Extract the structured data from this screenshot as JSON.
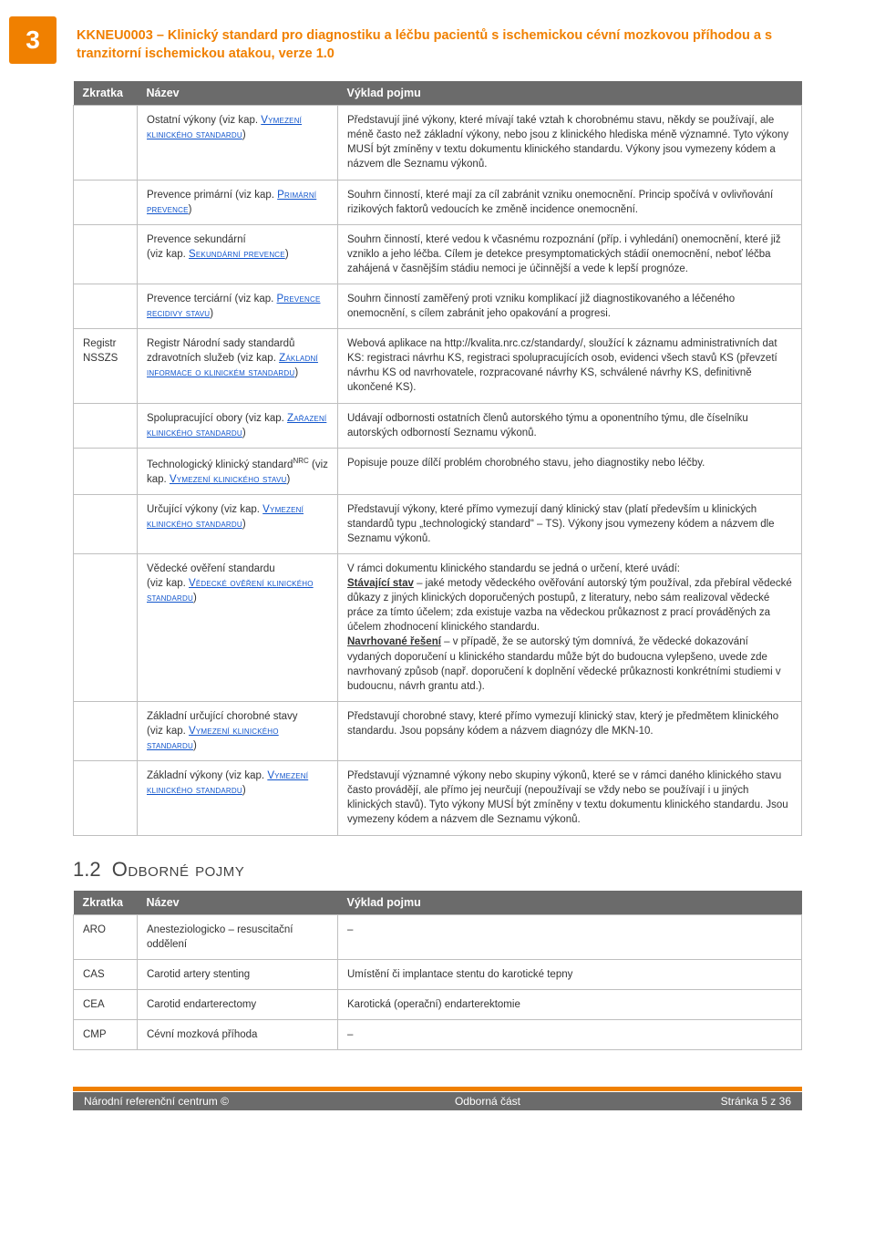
{
  "colors": {
    "accent_orange": "#f08000",
    "header_gray": "#6b6b6b",
    "border_gray": "#bfbfbf",
    "link_blue": "#1155cc",
    "text": "#333333",
    "background": "#ffffff"
  },
  "page_badge": "3",
  "doc_title": "KKNEU0003 – Klinický standard pro diagnostiku a léčbu pacientů s ischemickou cévní mozkovou příhodou a s tranzitorní ischemickou atakou, verze 1.0",
  "table1": {
    "headers": [
      "Zkratka",
      "Název",
      "Výklad pojmu"
    ],
    "rows": [
      {
        "c0": "",
        "c1_pre": "Ostatní výkony (viz kap. ",
        "c1_link": "Vymezení klinického standardu",
        "c1_post": ")",
        "c2": "Představují jiné výkony, které mívají také vztah k chorobnému stavu, někdy se používají, ale méně často než základní výkony, nebo jsou z klinického hlediska méně významné. Tyto výkony MUSÍ být zmíněny v textu dokumentu klinického standardu. Výkony jsou vymezeny kódem a názvem dle Seznamu výkonů."
      },
      {
        "c0": "",
        "c1_pre": "Prevence primární (viz kap. ",
        "c1_link": "Primární prevence",
        "c1_post": ")",
        "c2": "Souhrn činností, které mají za cíl zabránit vzniku onemocnění. Princip spočívá v ovlivňování rizikových faktorů vedoucích ke změně incidence onemocnění."
      },
      {
        "c0": "",
        "c1_pre": "Prevence sekundární\n(viz kap. ",
        "c1_link": "Sekundární prevence",
        "c1_post": ")",
        "c2": "Souhrn činností, které vedou k včasnému rozpoznání (příp. i vyhledání) onemocnění, které již vzniklo a jeho léčba. Cílem je detekce presymptomatických stádií onemocnění, neboť léčba zahájená v časnějším stádiu nemoci je účinnější a vede k lepší prognóze."
      },
      {
        "c0": "",
        "c1_pre": "Prevence terciární (viz kap. ",
        "c1_link": "Prevence recidivy stavu",
        "c1_post": ")",
        "c2": "Souhrn činností zaměřený proti vzniku komplikací již diagnostikovaného a léčeného onemocnění, s cílem zabránit jeho opakování a progresi."
      },
      {
        "c0": "Registr NSSZS",
        "c1_pre": "Registr Národní sady standardů zdravotních služeb (viz kap. ",
        "c1_link": "Základní informace o klinickém standardu",
        "c1_post": ")",
        "c2": "Webová aplikace na http://kvalita.nrc.cz/standardy/, sloužící k záznamu administrativních dat KS: registraci návrhu KS, registraci spolupracujících osob, evidenci všech stavů KS (převzetí návrhu KS od navrhovatele, rozpracované návrhy KS, schválené návrhy KS, definitivně ukončené KS)."
      },
      {
        "c0": "",
        "c1_pre": "Spolupracující obory (viz kap. ",
        "c1_link": "Zařazení klinického standardu",
        "c1_post": ")",
        "c2": "Udávají odbornosti ostatních členů autorského týmu a oponentního týmu, dle číselníku autorských odborností Seznamu výkonů."
      },
      {
        "c0": "",
        "c1_pre_html": "Technologický klinický standard<sup>NRC</sup> (viz kap. ",
        "c1_link": "Vymezení klinického stavu",
        "c1_post": ")",
        "c2": "Popisuje pouze dílčí problém chorobného stavu, jeho diagnostiky nebo léčby."
      },
      {
        "c0": "",
        "c1_pre": "Určující výkony (viz kap. ",
        "c1_link": "Vymezení klinického standardu",
        "c1_post": ")",
        "c2": "Představují výkony, které přímo vymezují daný klinický stav (platí především u klinických standardů typu „technologický standard\" – TS). Výkony jsou vymezeny kódem a názvem dle Seznamu výkonů."
      },
      {
        "c0": "",
        "c1_pre": "Vědecké ověření standardu\n(viz kap. ",
        "c1_link": "Vědecké ověření klinického standardu",
        "c1_post": ")",
        "c2_html": "V rámci dokumentu klinického standardu se jedná o určení, které uvádí:<br><strong class=\"underline\">Stávající stav</strong> – jaké metody vědeckého ověřování autorský tým používal, zda přebíral vědecké důkazy z jiných klinických doporučených postupů, z literatury, nebo sám realizoval vědecké práce za tímto účelem; zda existuje vazba na vědeckou průkaznost z prací prováděných za účelem zhodnocení klinického standardu.<br><strong class=\"underline\">Navrhované řešení</strong> – v případě, že se autorský tým domnívá, že vědecké dokazování vydaných doporučení u klinického standardu může být do budoucna vylepšeno, uvede zde navrhovaný způsob (např. doporučení k doplnění vědecké průkaznosti konkrétními studiemi v budoucnu, návrh grantu atd.)."
      },
      {
        "c0": "",
        "c1_pre": "Základní určující chorobné stavy\n(viz kap. ",
        "c1_link": "Vymezení klinického standardu",
        "c1_post": ")",
        "c2": "Představují chorobné stavy, které přímo vymezují klinický stav, který je předmětem klinického standardu. Jsou popsány kódem a názvem diagnózy dle MKN-10."
      },
      {
        "c0": "",
        "c1_pre": "Základní výkony (viz kap. ",
        "c1_link": "Vymezení klinického standardu",
        "c1_post": ")",
        "c2": "Představují významné výkony nebo skupiny výkonů, které se v rámci daného klinického stavu často provádějí, ale přímo jej neurčují (nepoužívají se vždy nebo se používají i u jiných klinických stavů). Tyto výkony MUSÍ být zmíněny v textu dokumentu klinického standardu. Jsou vymezeny kódem a názvem dle Seznamu výkonů."
      }
    ]
  },
  "section2": {
    "num": "1.2",
    "title": "Odborné pojmy"
  },
  "table2": {
    "headers": [
      "Zkratka",
      "Název",
      "Výklad pojmu"
    ],
    "rows": [
      {
        "c0": "ARO",
        "c1": "Anesteziologicko – resuscitační oddělení",
        "c2": "–"
      },
      {
        "c0": "CAS",
        "c1": "Carotid artery stenting",
        "c2": "Umístění či implantace stentu do karotické tepny"
      },
      {
        "c0": "CEA",
        "c1": "Carotid endarterectomy",
        "c2": "Karotická (operační) endarterektomie"
      },
      {
        "c0": "CMP",
        "c1": "Cévní mozková příhoda",
        "c2": "–"
      }
    ]
  },
  "footer": {
    "left": "Národní referenční centrum ©",
    "mid": "Odborná část",
    "right": "Stránka 5 z 36"
  }
}
